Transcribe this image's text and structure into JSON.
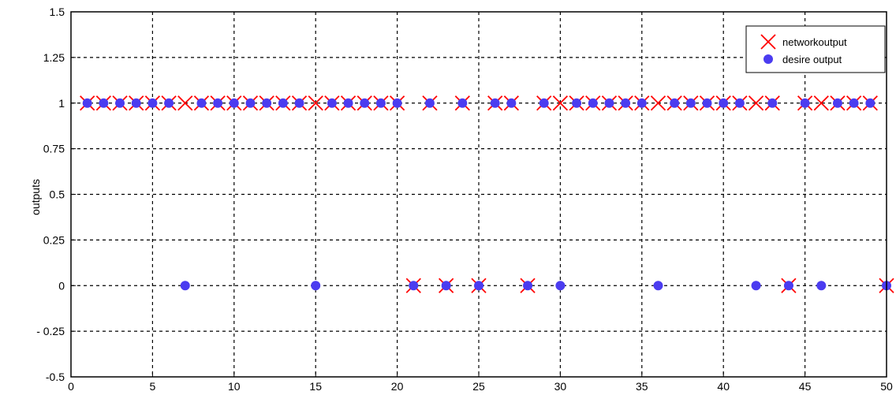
{
  "chart_data": {
    "type": "scatter",
    "title": "",
    "xlabel": "",
    "ylabel": "outputs",
    "xlim": [
      0,
      50
    ],
    "ylim": [
      -0.5,
      1.5
    ],
    "xticks": [
      0,
      5,
      10,
      15,
      20,
      25,
      30,
      35,
      40,
      45,
      50
    ],
    "yticks": [
      -0.5,
      -0.25,
      0,
      0.25,
      0.5,
      0.75,
      1,
      1.25,
      1.5
    ],
    "xtick_labels": [
      "0",
      "5",
      "10",
      "15",
      "20",
      "25",
      "30",
      "35",
      "40",
      "45",
      "50"
    ],
    "ytick_labels": [
      "-0.5",
      "- 0.25",
      "0",
      "0.25",
      "0.5",
      "0.75",
      "1",
      "1.25",
      "1.5"
    ],
    "grid": true,
    "legend_position": "top-right",
    "x": [
      1,
      2,
      3,
      4,
      5,
      6,
      7,
      8,
      9,
      10,
      11,
      12,
      13,
      14,
      15,
      16,
      17,
      18,
      19,
      20,
      21,
      22,
      23,
      24,
      25,
      26,
      27,
      28,
      29,
      30,
      31,
      32,
      33,
      34,
      35,
      36,
      37,
      38,
      39,
      40,
      41,
      42,
      43,
      44,
      45,
      46,
      47,
      48,
      49,
      50
    ],
    "series": [
      {
        "name": "networkoutput",
        "marker": "x",
        "color": "#ff0000",
        "values": [
          1,
          1,
          1,
          1,
          1,
          1,
          1,
          1,
          1,
          1,
          1,
          1,
          1,
          1,
          1,
          1,
          1,
          1,
          1,
          1,
          0,
          1,
          0,
          1,
          0,
          1,
          1,
          0,
          1,
          1,
          1,
          1,
          1,
          1,
          1,
          1,
          1,
          1,
          1,
          1,
          1,
          1,
          1,
          0,
          1,
          1,
          1,
          1,
          1,
          0
        ]
      },
      {
        "name": "desire output",
        "marker": "o",
        "color": "#4b3cf0",
        "values": [
          1,
          1,
          1,
          1,
          1,
          1,
          0,
          1,
          1,
          1,
          1,
          1,
          1,
          1,
          0,
          1,
          1,
          1,
          1,
          1,
          0,
          1,
          0,
          1,
          0,
          1,
          1,
          0,
          1,
          0,
          1,
          1,
          1,
          1,
          1,
          0,
          1,
          1,
          1,
          1,
          1,
          0,
          1,
          0,
          1,
          0,
          1,
          1,
          1,
          0
        ]
      }
    ]
  }
}
